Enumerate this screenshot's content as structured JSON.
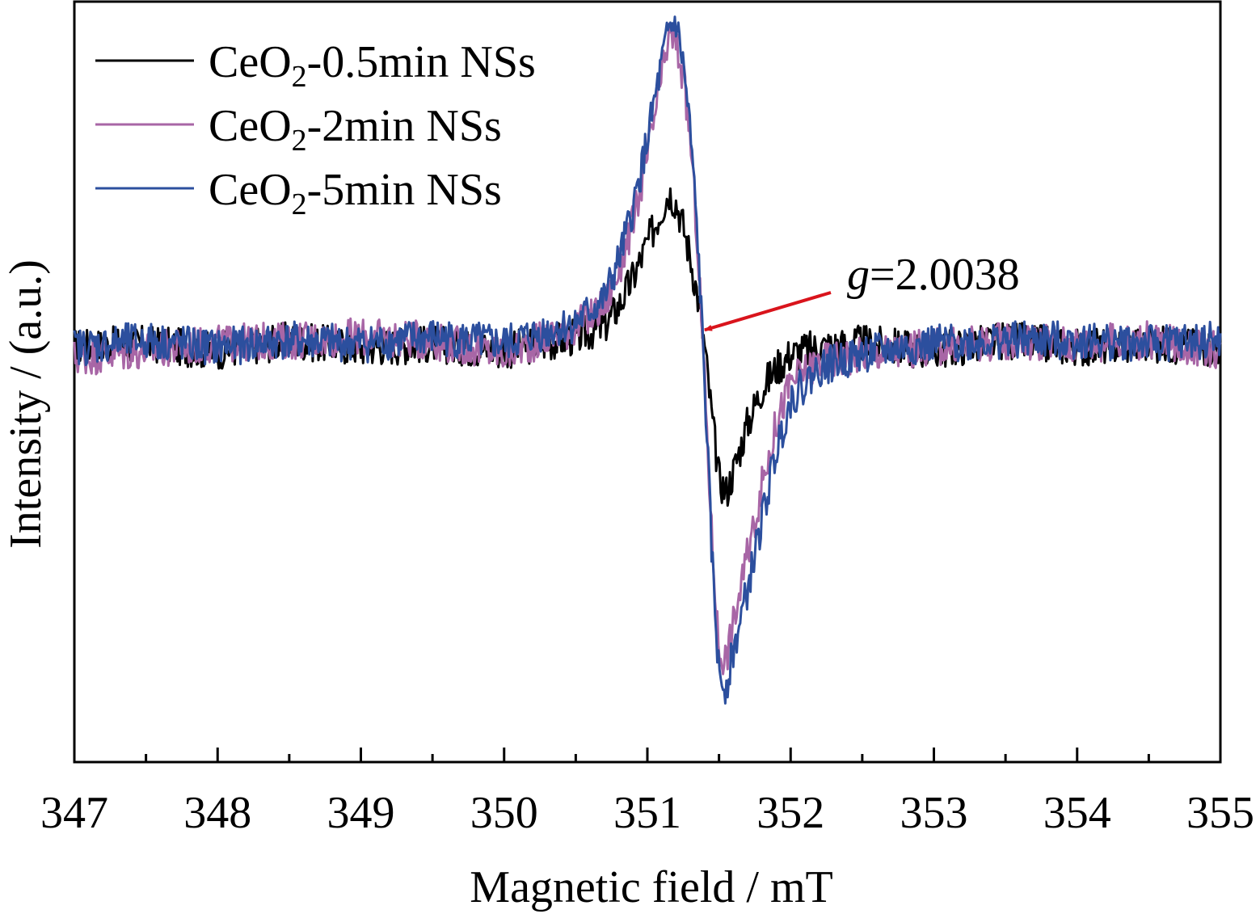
{
  "chart_data": {
    "type": "line",
    "title": "",
    "xlabel": "Magnetic field / mT",
    "ylabel": "Intensity / (a.u.)",
    "xlim": [
      347,
      355
    ],
    "ylim": [
      -1.2,
      1.0
    ],
    "xticks": [
      "347",
      "348",
      "349",
      "350",
      "351",
      "352",
      "353",
      "354",
      "355"
    ],
    "y_ticks_shown": false,
    "grid": false,
    "legend_position": "top-left",
    "annotation": {
      "italic_part": "g",
      "value_text": "=2.0038",
      "points_to": {
        "x": 351.4,
        "y": 0.05
      }
    },
    "series": [
      {
        "name": "CeO2-0.5min NSs",
        "legend_base": "CeO",
        "legend_sub": "2",
        "legend_suffix": "-0.5min NSs",
        "color": "#000000",
        "x": [
          347.0,
          347.5,
          348.0,
          348.5,
          349.0,
          349.5,
          350.0,
          350.5,
          350.7,
          350.8,
          350.9,
          351.0,
          351.1,
          351.15,
          351.2,
          351.25,
          351.3,
          351.35,
          351.4,
          351.45,
          351.5,
          351.55,
          351.6,
          351.7,
          351.8,
          351.9,
          352.0,
          352.2,
          352.5,
          353.0,
          353.5,
          354.0,
          354.5,
          355.0
        ],
        "y": [
          0.0,
          0.01,
          -0.01,
          0.02,
          0.0,
          0.01,
          -0.01,
          0.03,
          0.06,
          0.12,
          0.2,
          0.3,
          0.4,
          0.45,
          0.42,
          0.35,
          0.26,
          0.15,
          0.0,
          -0.2,
          -0.38,
          -0.42,
          -0.36,
          -0.22,
          -0.12,
          -0.06,
          -0.02,
          0.0,
          0.01,
          -0.01,
          0.02,
          0.0,
          0.01,
          0.0
        ]
      },
      {
        "name": "CeO2-2min NSs",
        "legend_base": "CeO",
        "legend_sub": "2",
        "legend_suffix": "-2min NSs",
        "color": "#a866a6",
        "x": [
          347.0,
          347.5,
          348.0,
          348.5,
          349.0,
          349.5,
          350.0,
          350.5,
          350.7,
          350.8,
          350.9,
          351.0,
          351.1,
          351.15,
          351.2,
          351.25,
          351.3,
          351.35,
          351.4,
          351.45,
          351.5,
          351.55,
          351.6,
          351.7,
          351.8,
          351.9,
          352.0,
          352.2,
          352.5,
          353.0,
          353.5,
          354.0,
          354.5,
          355.0
        ],
        "y": [
          -0.03,
          -0.01,
          0.01,
          0.02,
          0.03,
          0.02,
          -0.02,
          0.06,
          0.12,
          0.22,
          0.36,
          0.55,
          0.78,
          0.9,
          0.88,
          0.78,
          0.6,
          0.3,
          -0.1,
          -0.55,
          -0.88,
          -0.9,
          -0.8,
          -0.6,
          -0.4,
          -0.22,
          -0.1,
          -0.04,
          -0.02,
          0.0,
          0.02,
          0.01,
          0.02,
          -0.01
        ]
      },
      {
        "name": "CeO2-5min NSs",
        "legend_base": "CeO",
        "legend_sub": "2",
        "legend_suffix": "-5min NSs",
        "color": "#2c4f9e",
        "x": [
          347.0,
          347.5,
          348.0,
          348.5,
          349.0,
          349.5,
          350.0,
          350.5,
          350.7,
          350.8,
          350.9,
          351.0,
          351.1,
          351.15,
          351.2,
          351.25,
          351.3,
          351.35,
          351.4,
          351.45,
          351.5,
          351.55,
          351.6,
          351.7,
          351.8,
          351.9,
          352.0,
          352.2,
          352.5,
          353.0,
          353.5,
          354.0,
          354.5,
          355.0
        ],
        "y": [
          0.0,
          0.02,
          0.0,
          0.02,
          0.01,
          0.03,
          0.01,
          0.07,
          0.14,
          0.25,
          0.4,
          0.6,
          0.82,
          0.92,
          0.94,
          0.82,
          0.62,
          0.32,
          -0.1,
          -0.6,
          -0.95,
          -0.98,
          -0.88,
          -0.7,
          -0.5,
          -0.3,
          -0.15,
          -0.06,
          -0.02,
          0.01,
          0.02,
          0.02,
          0.01,
          0.02
        ]
      }
    ]
  },
  "colors": {
    "axis": "#000000",
    "arrow": "#d9141c"
  }
}
